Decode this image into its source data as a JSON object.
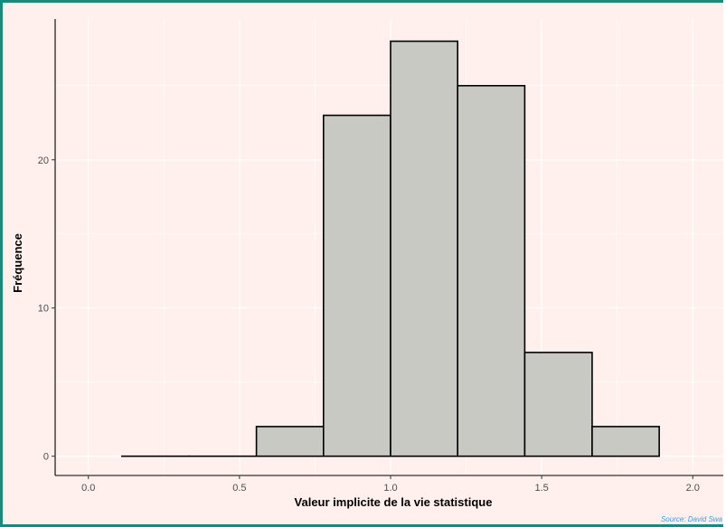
{
  "chart_data": {
    "type": "bar",
    "title": "",
    "xlabel": "Valeur implicite de la vie statistique",
    "ylabel": "Fréquence",
    "xlim": [
      -0.11,
      2.11
    ],
    "ylim": [
      -1.3,
      29.5
    ],
    "xticks": [
      0.0,
      0.5,
      1.0,
      1.5,
      2.0
    ],
    "xtick_labels": [
      "0.0",
      "0.5",
      "1.0",
      "1.5",
      "2.0"
    ],
    "yticks": [
      0,
      10,
      20
    ],
    "ytick_labels": [
      "0",
      "10",
      "20"
    ],
    "bins": [
      {
        "x0": 0.111,
        "x1": 0.333,
        "count": 0
      },
      {
        "x0": 0.333,
        "x1": 0.556,
        "count": 0
      },
      {
        "x0": 0.556,
        "x1": 0.778,
        "count": 2
      },
      {
        "x0": 0.778,
        "x1": 1.0,
        "count": 23
      },
      {
        "x0": 1.0,
        "x1": 1.222,
        "count": 28
      },
      {
        "x0": 1.222,
        "x1": 1.444,
        "count": 25
      },
      {
        "x0": 1.444,
        "x1": 1.667,
        "count": 7
      },
      {
        "x0": 1.667,
        "x1": 1.889,
        "count": 2
      }
    ],
    "grid": true,
    "legend": "none",
    "colors": {
      "bar_fill": "#C8C9C3",
      "bar_stroke": "#000000",
      "background": "#FFF0EE",
      "grid": "#FFFFFF",
      "border": "#168A7E",
      "source_text": "#3A9AD9"
    }
  },
  "source_note": "Source: David Swa"
}
